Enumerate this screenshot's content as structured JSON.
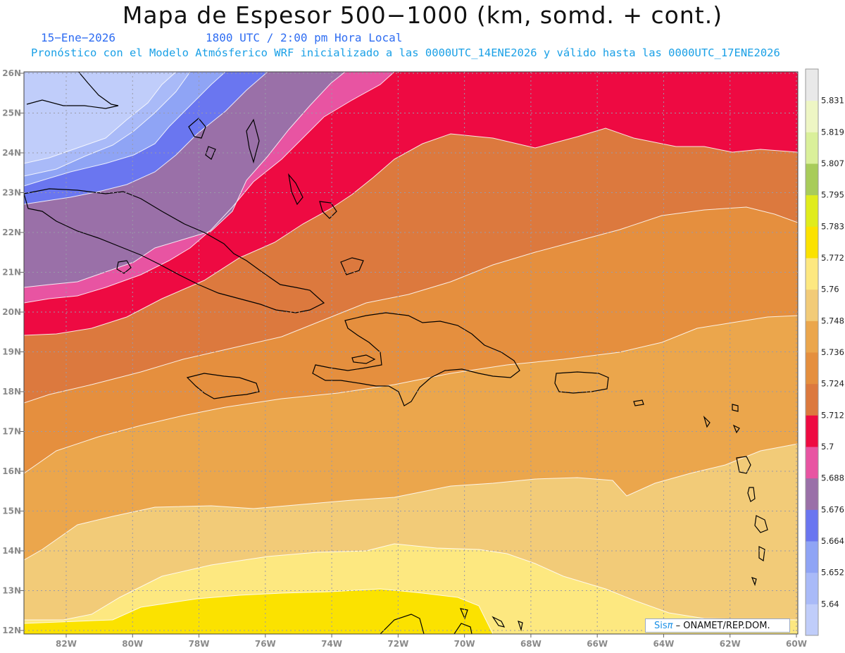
{
  "header": {
    "title": "Mapa de Espesor 500−1000 (km, somd. + cont.)",
    "date": "15−Ene−2026",
    "time": "1800 UTC / 2:00 pm Hora Local",
    "info": "Pronóstico con el Modelo Atmósferico WRF inicializado a las 0000UTC_14ENE2026 y válido hasta las  0000UTC_17ENE2026"
  },
  "credit": {
    "sis": "Sis",
    "pi": "π",
    "rest": "– ONAMET/REP.DOM."
  },
  "axes": {
    "lon_labels": [
      "82W",
      "80W",
      "78W",
      "76W",
      "74W",
      "72W",
      "70W",
      "68W",
      "66W",
      "64W",
      "62W",
      "60W"
    ],
    "lat_labels": [
      "26N",
      "25N",
      "24N",
      "23N",
      "22N",
      "21N",
      "20N",
      "19N",
      "18N",
      "17N",
      "16N",
      "15N",
      "14N",
      "13N",
      "12N"
    ]
  },
  "colorbar": {
    "levels": [
      "5.64",
      "5.652",
      "5.664",
      "5.676",
      "5.688",
      "5.7",
      "5.712",
      "5.724",
      "5.736",
      "5.748",
      "5.76",
      "5.772",
      "5.783",
      "5.795",
      "5.807",
      "5.819",
      "5.831"
    ],
    "colors": [
      "#c0cdfa",
      "#a9baf8",
      "#8fa4f5",
      "#6a76f0",
      "#9a70a8",
      "#e854a2",
      "#ee0a42",
      "#dc793e",
      "#e58f3e",
      "#eba64c",
      "#f2cb78",
      "#fde880",
      "#fbe200",
      "#e0ec1c",
      "#a8cc5a",
      "#daf09a",
      "#eef6c4",
      "#e9e9e9"
    ]
  }
}
